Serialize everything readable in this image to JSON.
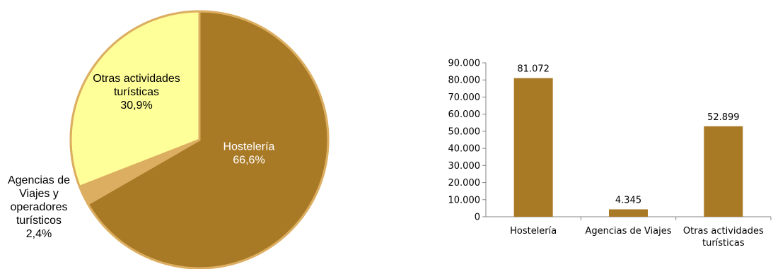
{
  "chart_data": [
    {
      "type": "pie",
      "slices": [
        {
          "label": [
            "Hostelería"
          ],
          "percent_label": "66,6%",
          "value": 66.6,
          "color": "#a97a26",
          "text_color": "#ffffff"
        },
        {
          "label": [
            "Agencias de",
            "Viajes y",
            "operadores",
            "turísticos"
          ],
          "percent_label": "2,4%",
          "value": 2.4,
          "color": "#dcae62",
          "text_color": "#000000"
        },
        {
          "label": [
            "Otras actividades",
            "turísticas"
          ],
          "percent_label": "30,9%",
          "value": 30.9,
          "color": "#ffff99",
          "text_color": "#000000"
        }
      ],
      "border_color": "#dcae62"
    },
    {
      "type": "bar",
      "categories": [
        [
          "Hostelería"
        ],
        [
          "Agencias de Viajes"
        ],
        [
          "Otras actividades",
          "turísticas"
        ]
      ],
      "values": [
        81072,
        4345,
        52899
      ],
      "value_labels": [
        "81.072",
        "4.345",
        "52.899"
      ],
      "ylim": [
        0,
        90000
      ],
      "yticks": [
        0,
        10000,
        20000,
        30000,
        40000,
        50000,
        60000,
        70000,
        80000,
        90000
      ],
      "ytick_labels": [
        "0",
        "10.000",
        "20.000",
        "30.000",
        "40.000",
        "50.000",
        "60.000",
        "70.000",
        "80.000",
        "90.000"
      ],
      "bar_color": "#a97a26",
      "grid": false
    }
  ]
}
